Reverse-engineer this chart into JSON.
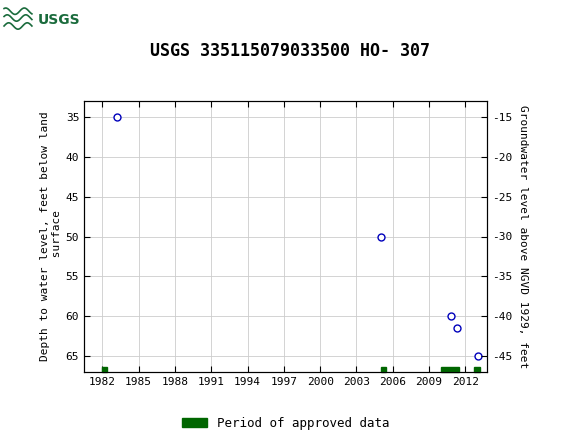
{
  "title": "USGS 335115079033500 HO- 307",
  "header_color": "#1a6b3c",
  "left_ylabel": "Depth to water level, feet below land\n surface",
  "right_ylabel": "Groundwater level above NGVD 1929, feet",
  "xlim": [
    1980.5,
    2013.8
  ],
  "ylim_left_top": 33,
  "ylim_left_bottom": 67,
  "ylim_right_top": -13,
  "ylim_right_bottom": -47,
  "xticks": [
    1982,
    1985,
    1988,
    1991,
    1994,
    1997,
    2000,
    2003,
    2006,
    2009,
    2012
  ],
  "yticks_left": [
    35,
    40,
    45,
    50,
    55,
    60,
    65
  ],
  "yticks_right": [
    -15,
    -20,
    -25,
    -30,
    -35,
    -40,
    -45
  ],
  "data_points": [
    {
      "x": 1983.2,
      "y_left": 35.0
    },
    {
      "x": 2005.0,
      "y_left": 50.0
    },
    {
      "x": 2010.8,
      "y_left": 60.0
    },
    {
      "x": 2011.3,
      "y_left": 61.5
    },
    {
      "x": 2013.0,
      "y_left": 65.0
    }
  ],
  "approved_periods": [
    {
      "x_start": 1982.0,
      "x_end": 1982.4
    },
    {
      "x_start": 2005.0,
      "x_end": 2005.4
    },
    {
      "x_start": 2010.0,
      "x_end": 2011.5
    },
    {
      "x_start": 2012.7,
      "x_end": 2013.2
    }
  ],
  "point_color": "#0000bb",
  "approved_color": "#006600",
  "background_color": "#ffffff",
  "grid_color": "#cccccc",
  "legend_label": "Period of approved data",
  "title_fontsize": 12,
  "axis_fontsize": 8,
  "legend_fontsize": 9
}
